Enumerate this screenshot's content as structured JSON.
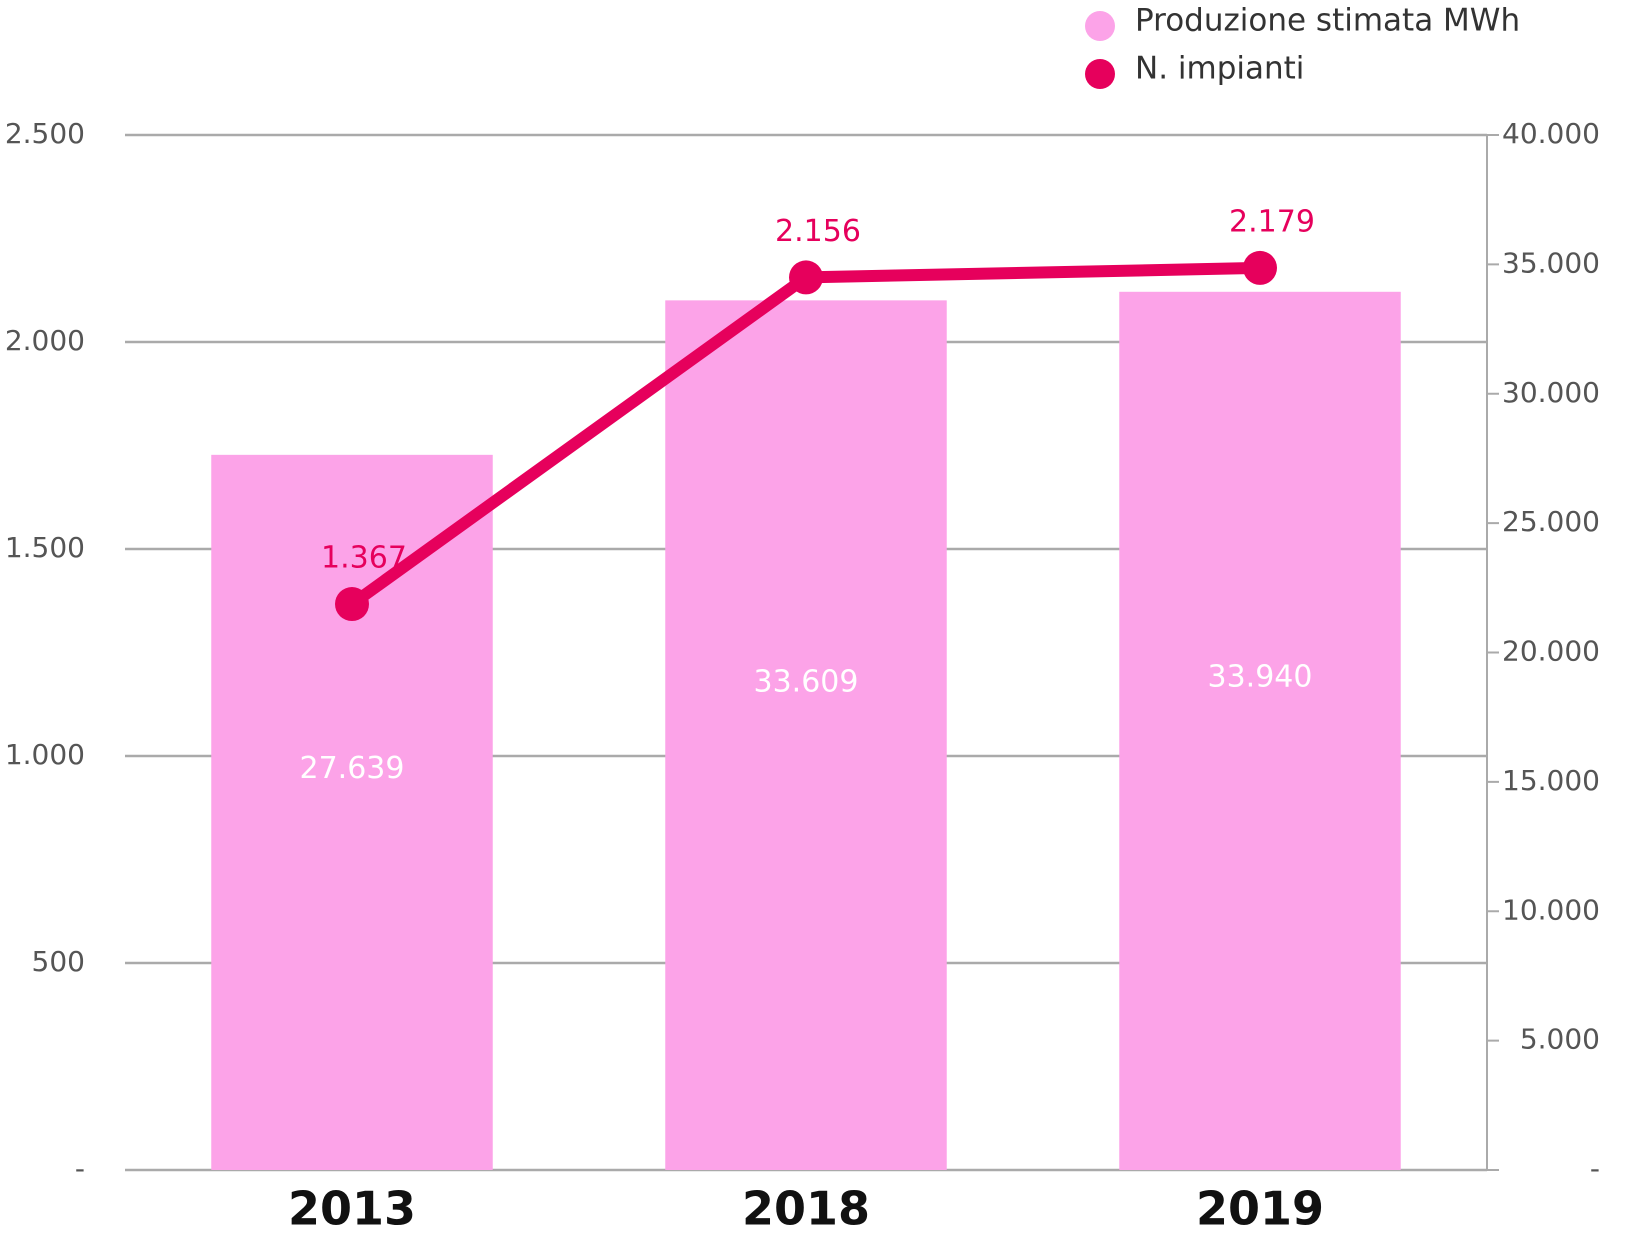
{
  "chart_data": {
    "type": "bar_line",
    "categories": [
      "2013",
      "2018",
      "2019"
    ],
    "series": [
      {
        "name": "Produzione stimata MWh",
        "type": "bar",
        "axis": "y2",
        "color": "#fca3e8",
        "values": [
          27639,
          33609,
          33940
        ],
        "value_labels": [
          "27.639",
          "33.609",
          "33.940"
        ]
      },
      {
        "name": "N. impianti",
        "type": "line",
        "axis": "y",
        "color": "#e6005c",
        "values": [
          1367,
          2156,
          2179
        ],
        "value_labels": [
          "1.367",
          "2.156",
          "2.179"
        ]
      }
    ],
    "ylim": [
      0,
      2500
    ],
    "yticks": [
      {
        "value": 0,
        "label": "-"
      },
      500,
      {
        "value": 1000,
        "label": "1.000"
      },
      {
        "value": 1500,
        "label": "1.500"
      },
      {
        "value": 2000,
        "label": "2.000"
      },
      {
        "value": 2500,
        "label": "2.500"
      }
    ],
    "y2lim": [
      0,
      40000
    ],
    "y2ticks": [
      {
        "value": 0,
        "label": "-"
      },
      {
        "value": 5000,
        "label": "5.000"
      },
      {
        "value": 10000,
        "label": "10.000"
      },
      {
        "value": 15000,
        "label": "15.000"
      },
      {
        "value": 20000,
        "label": "20.000"
      },
      {
        "value": 25000,
        "label": "25.000"
      },
      {
        "value": 30000,
        "label": "30.000"
      },
      {
        "value": 35000,
        "label": "35.000"
      },
      {
        "value": 40000,
        "label": "40.000"
      }
    ],
    "grid": true,
    "legend": "top-right"
  }
}
